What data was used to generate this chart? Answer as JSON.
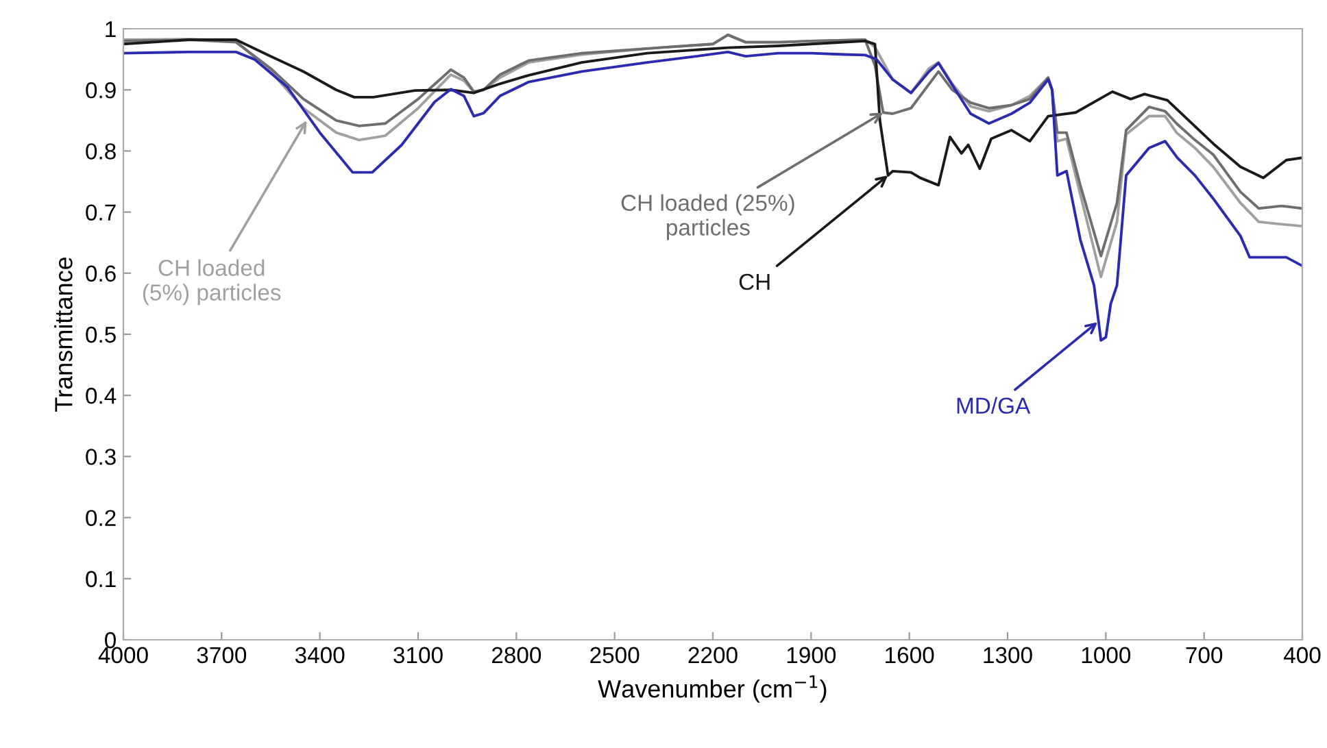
{
  "chart_data": {
    "type": "line",
    "xlabel": "Wavenumber (cm$^{−1}$)",
    "ylabel": "Transmittance",
    "xlim": [
      4000,
      400
    ],
    "xticks": [
      4000,
      3700,
      3400,
      3100,
      2800,
      2500,
      2200,
      1900,
      1600,
      1300,
      1000,
      700,
      400
    ],
    "ylim": [
      0,
      1
    ],
    "yticks": [
      0,
      0.1,
      0.2,
      0.3,
      0.4,
      0.5,
      0.6,
      0.7,
      0.8,
      0.9,
      1
    ],
    "grid": false,
    "marker": "none",
    "line_style": "solid",
    "series": [
      {
        "color": "#a0a0a0",
        "x": [
          4000,
          3800,
          3656,
          3550,
          3450,
          3350,
          3280,
          3200,
          3100,
          3000,
          2960,
          2930,
          2900,
          2850,
          2762,
          2600,
          2364,
          2200,
          2154,
          2100,
          2000,
          1900,
          1735,
          1705,
          1651,
          1595,
          1540,
          1511,
          1469,
          1413,
          1357,
          1288,
          1232,
          1176,
          1164,
          1148,
          1120,
          1078,
          1015,
          966,
          938,
          868,
          819,
          784,
          728,
          672,
          589,
          533,
          463,
          400
        ],
        "values": [
          0.982,
          0.983,
          0.98,
          0.93,
          0.87,
          0.83,
          0.818,
          0.825,
          0.87,
          0.925,
          0.915,
          0.897,
          0.9,
          0.92,
          0.945,
          0.958,
          0.969,
          0.975,
          0.99,
          0.978,
          0.978,
          0.98,
          0.982,
          0.97,
          0.917,
          0.895,
          0.935,
          0.945,
          0.91,
          0.873,
          0.865,
          0.875,
          0.89,
          0.92,
          0.9,
          0.816,
          0.82,
          0.729,
          0.594,
          0.684,
          0.827,
          0.857,
          0.857,
          0.83,
          0.805,
          0.774,
          0.715,
          0.684,
          0.68,
          0.677
        ]
      },
      {
        "color": "#6e6e6e",
        "x": [
          4000,
          3800,
          3656,
          3550,
          3450,
          3350,
          3280,
          3200,
          3100,
          3000,
          2960,
          2930,
          2900,
          2850,
          2762,
          2600,
          2364,
          2200,
          2154,
          2100,
          2000,
          1900,
          1735,
          1705,
          1680,
          1651,
          1595,
          1511,
          1469,
          1413,
          1357,
          1288,
          1232,
          1176,
          1164,
          1148,
          1120,
          1078,
          1015,
          966,
          938,
          868,
          819,
          784,
          728,
          672,
          589,
          533,
          463,
          400
        ],
        "values": [
          0.98,
          0.982,
          0.978,
          0.935,
          0.885,
          0.85,
          0.841,
          0.845,
          0.885,
          0.933,
          0.92,
          0.897,
          0.9,
          0.925,
          0.948,
          0.96,
          0.969,
          0.975,
          0.99,
          0.978,
          0.978,
          0.98,
          0.982,
          0.94,
          0.863,
          0.861,
          0.87,
          0.93,
          0.9,
          0.879,
          0.87,
          0.875,
          0.885,
          0.92,
          0.9,
          0.83,
          0.83,
          0.744,
          0.628,
          0.715,
          0.834,
          0.872,
          0.865,
          0.845,
          0.818,
          0.794,
          0.733,
          0.706,
          0.71,
          0.706
        ]
      },
      {
        "color": "#1a1a1a",
        "x": [
          4000,
          3800,
          3656,
          3550,
          3450,
          3350,
          3295,
          3237,
          3110,
          3000,
          2930,
          2850,
          2762,
          2600,
          2400,
          2154,
          2000,
          1900,
          1735,
          1705,
          1690,
          1665,
          1651,
          1595,
          1567,
          1511,
          1476,
          1441,
          1420,
          1385,
          1350,
          1288,
          1232,
          1176,
          1092,
          980,
          924,
          882,
          812,
          672,
          589,
          519,
          449,
          400
        ],
        "values": [
          0.975,
          0.982,
          0.982,
          0.955,
          0.93,
          0.9,
          0.888,
          0.888,
          0.899,
          0.9,
          0.895,
          0.91,
          0.924,
          0.945,
          0.96,
          0.969,
          0.972,
          0.975,
          0.98,
          0.975,
          0.85,
          0.76,
          0.767,
          0.765,
          0.756,
          0.744,
          0.823,
          0.796,
          0.81,
          0.771,
          0.82,
          0.834,
          0.816,
          0.857,
          0.863,
          0.897,
          0.885,
          0.893,
          0.883,
          0.812,
          0.774,
          0.756,
          0.785,
          0.789
        ]
      },
      {
        "color": "#2b2bb0",
        "x": [
          4000,
          3800,
          3656,
          3600,
          3500,
          3400,
          3300,
          3240,
          3150,
          3050,
          3000,
          2960,
          2930,
          2900,
          2850,
          2762,
          2600,
          2400,
          2250,
          2154,
          2100,
          2000,
          1900,
          1800,
          1735,
          1700,
          1651,
          1595,
          1540,
          1511,
          1469,
          1413,
          1357,
          1288,
          1232,
          1176,
          1164,
          1148,
          1120,
          1078,
          1036,
          1015,
          1000,
          985,
          966,
          938,
          868,
          819,
          782,
          728,
          672,
          589,
          561,
          491,
          449,
          400
        ],
        "values": [
          0.96,
          0.962,
          0.962,
          0.95,
          0.905,
          0.83,
          0.765,
          0.765,
          0.81,
          0.88,
          0.901,
          0.89,
          0.857,
          0.862,
          0.89,
          0.913,
          0.93,
          0.945,
          0.955,
          0.962,
          0.955,
          0.96,
          0.96,
          0.958,
          0.957,
          0.95,
          0.917,
          0.895,
          0.93,
          0.944,
          0.908,
          0.861,
          0.845,
          0.861,
          0.879,
          0.917,
          0.9,
          0.76,
          0.767,
          0.655,
          0.58,
          0.49,
          0.495,
          0.55,
          0.58,
          0.76,
          0.805,
          0.816,
          0.789,
          0.76,
          0.722,
          0.661,
          0.626,
          0.626,
          0.626,
          0.612
        ]
      }
    ],
    "annotations": [
      {
        "text": "CH loaded\n(5%) particles",
        "x": 3440,
        "y": 0.85
      },
      {
        "text": "CH loaded (25%)\nparticles",
        "x": 1680,
        "y": 0.863
      },
      {
        "text": "CH",
        "x": 1665,
        "y": 0.76
      },
      {
        "text": "MD/GA",
        "x": 1025,
        "y": 0.52
      }
    ]
  }
}
